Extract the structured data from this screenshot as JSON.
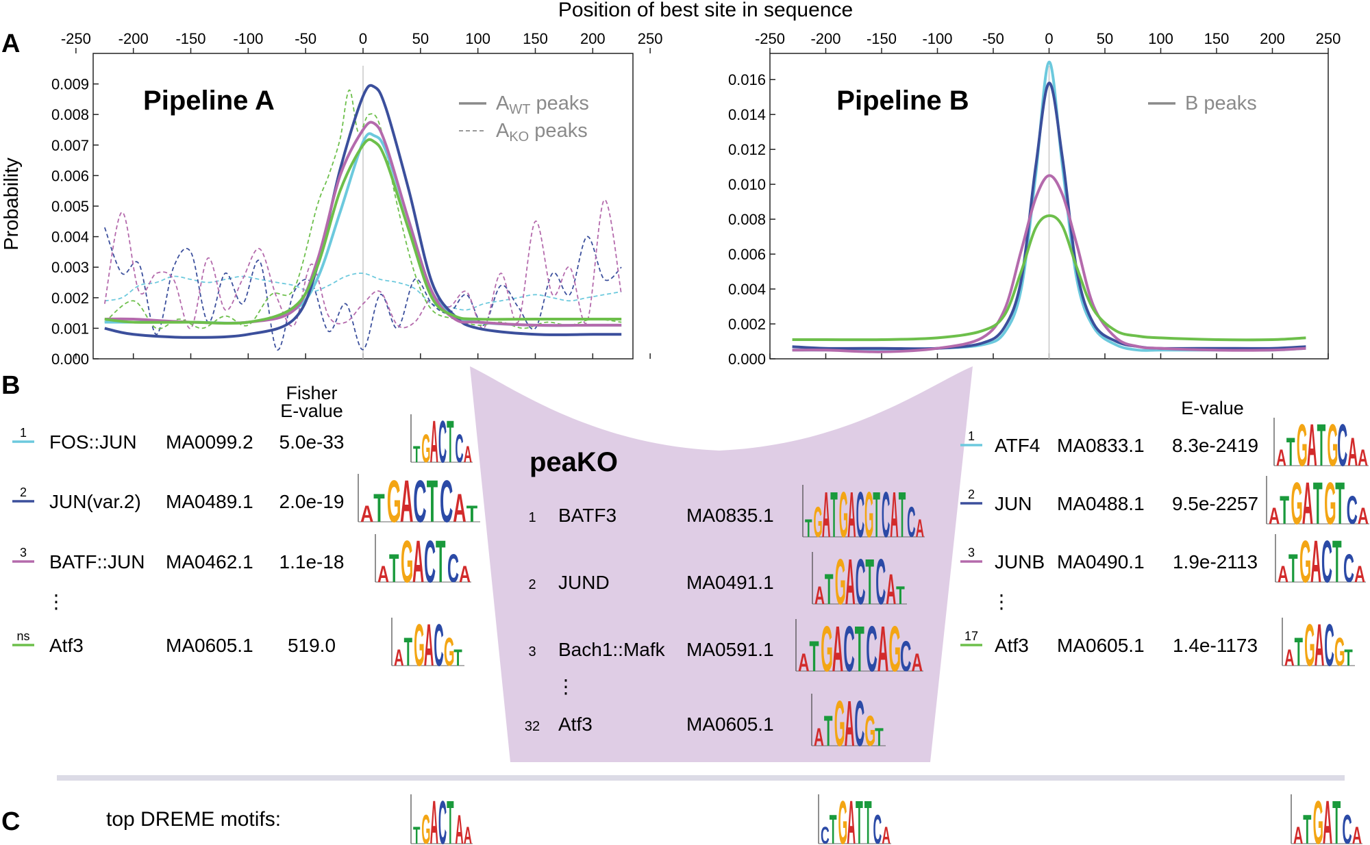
{
  "figure": {
    "panel_labels": [
      "A",
      "B",
      "C"
    ],
    "top_axis_title": "Position of best site in sequence",
    "colors": {
      "cyan": "#6cc9dd",
      "blue": "#3b4f9c",
      "magenta": "#b46aac",
      "green": "#6dbf4b",
      "legend_gray": "#8a8a8a",
      "funnel": "#d9c4e0"
    }
  },
  "chart_data": [
    {
      "type": "line",
      "title": "Pipeline A",
      "ylabel": "Probability",
      "xlim": [
        -235,
        235
      ],
      "ylim": [
        0,
        0.01
      ],
      "xticks": [
        -250,
        -200,
        -150,
        -100,
        -50,
        0,
        50,
        100,
        150,
        200,
        250
      ],
      "yticks": [
        0,
        0.001,
        0.002,
        0.003,
        0.004,
        0.005,
        0.006,
        0.007,
        0.008,
        0.009
      ],
      "ytick_labels": [
        "0.000",
        "0.001",
        "0.002",
        "0.003",
        "0.004",
        "0.005",
        "0.006",
        "0.007",
        "0.008",
        "0.009"
      ],
      "legend": [
        {
          "label": "A",
          "sub": "WT",
          "suffix": " peaks",
          "style": "solid"
        },
        {
          "label": "A",
          "sub": "KO",
          "suffix": " peaks",
          "style": "dashed"
        }
      ],
      "legend_position": "top-right",
      "center_line": 0,
      "series": [
        {
          "color": "cyan",
          "style": "solid",
          "x": [
            -225,
            -200,
            -150,
            -100,
            -60,
            -40,
            -20,
            0,
            10,
            20,
            40,
            60,
            80,
            100,
            150,
            200,
            225
          ],
          "y": [
            0.0012,
            0.0012,
            0.0012,
            0.0012,
            0.0016,
            0.0026,
            0.0048,
            0.0071,
            0.0073,
            0.0068,
            0.0045,
            0.0022,
            0.0014,
            0.0012,
            0.0011,
            0.0011,
            0.0011
          ]
        },
        {
          "color": "blue",
          "style": "solid",
          "x": [
            -225,
            -200,
            -150,
            -100,
            -60,
            -40,
            -20,
            0,
            10,
            20,
            40,
            60,
            80,
            100,
            150,
            200,
            225
          ],
          "y": [
            0.001,
            0.0008,
            0.0007,
            0.0008,
            0.0013,
            0.003,
            0.0062,
            0.0086,
            0.0089,
            0.0082,
            0.0055,
            0.0025,
            0.0014,
            0.001,
            0.0008,
            0.0008,
            0.0008
          ]
        },
        {
          "color": "magenta",
          "style": "solid",
          "x": [
            -225,
            -200,
            -150,
            -100,
            -60,
            -40,
            -20,
            0,
            10,
            20,
            40,
            60,
            80,
            100,
            150,
            200,
            225
          ],
          "y": [
            0.0013,
            0.0013,
            0.0012,
            0.0012,
            0.0016,
            0.0032,
            0.006,
            0.0075,
            0.0077,
            0.007,
            0.0045,
            0.0022,
            0.0013,
            0.0012,
            0.0011,
            0.0011,
            0.0011
          ]
        },
        {
          "color": "green",
          "style": "solid",
          "x": [
            -225,
            -200,
            -150,
            -100,
            -60,
            -40,
            -20,
            0,
            10,
            20,
            40,
            60,
            80,
            100,
            150,
            200,
            225
          ],
          "y": [
            0.0013,
            0.0012,
            0.0012,
            0.0012,
            0.0017,
            0.003,
            0.0055,
            0.007,
            0.0071,
            0.0065,
            0.0042,
            0.002,
            0.0014,
            0.0013,
            0.0013,
            0.0013,
            0.0013
          ]
        },
        {
          "color": "cyan",
          "style": "dashed",
          "x": [
            -225,
            -210,
            -195,
            -180,
            -165,
            -150,
            -135,
            -120,
            -105,
            -90,
            -75,
            -60,
            -45,
            -30,
            -15,
            0,
            15,
            30,
            45,
            60,
            75,
            90,
            105,
            120,
            135,
            150,
            165,
            180,
            195,
            210,
            225
          ],
          "y": [
            0.0019,
            0.002,
            0.0024,
            0.0025,
            0.0027,
            0.0026,
            0.0025,
            0.0026,
            0.0027,
            0.0026,
            0.0025,
            0.0024,
            0.0022,
            0.0024,
            0.0027,
            0.0028,
            0.0026,
            0.0025,
            0.0023,
            0.0018,
            0.0017,
            0.0016,
            0.0018,
            0.0019,
            0.002,
            0.0021,
            0.002,
            0.0019,
            0.002,
            0.0021,
            0.0022
          ]
        },
        {
          "color": "blue",
          "style": "dashed",
          "x": [
            -225,
            -210,
            -195,
            -180,
            -165,
            -150,
            -135,
            -120,
            -105,
            -90,
            -75,
            -60,
            -45,
            -30,
            -15,
            0,
            15,
            30,
            45,
            60,
            75,
            90,
            105,
            120,
            135,
            150,
            165,
            180,
            195,
            210,
            225
          ],
          "y": [
            0.0043,
            0.0028,
            0.0031,
            0.0008,
            0.003,
            0.0035,
            0.0012,
            0.0028,
            0.0018,
            0.0032,
            0.0003,
            0.0022,
            0.0025,
            0.0009,
            0.0018,
            0.0003,
            0.0021,
            0.001,
            0.0026,
            0.0018,
            0.0015,
            0.0021,
            0.0011,
            0.0024,
            0.0017,
            0.001,
            0.0028,
            0.0021,
            0.004,
            0.0026,
            0.003
          ]
        },
        {
          "color": "magenta",
          "style": "dashed",
          "x": [
            -225,
            -210,
            -195,
            -180,
            -165,
            -150,
            -135,
            -120,
            -105,
            -90,
            -75,
            -60,
            -45,
            -30,
            -15,
            0,
            15,
            30,
            45,
            60,
            75,
            90,
            105,
            120,
            135,
            150,
            165,
            180,
            195,
            210,
            225
          ],
          "y": [
            0.0018,
            0.0048,
            0.0022,
            0.0028,
            0.0026,
            0.001,
            0.0033,
            0.0016,
            0.0026,
            0.0036,
            0.002,
            0.0011,
            0.0031,
            0.0014,
            0.0012,
            0.0018,
            0.0022,
            0.0011,
            0.0012,
            0.002,
            0.0017,
            0.0022,
            0.001,
            0.0028,
            0.0012,
            0.0045,
            0.0021,
            0.003,
            0.0012,
            0.0052,
            0.0021
          ]
        },
        {
          "color": "green",
          "style": "dashed",
          "x": [
            -225,
            -200,
            -180,
            -160,
            -140,
            -120,
            -100,
            -80,
            -60,
            -40,
            -30,
            -20,
            -12,
            -4,
            5,
            15,
            30,
            45,
            60,
            80,
            100,
            120,
            140,
            160,
            180,
            200,
            225
          ],
          "y": [
            0.0012,
            0.0019,
            0.001,
            0.0013,
            0.001,
            0.0014,
            0.0011,
            0.0021,
            0.0023,
            0.005,
            0.006,
            0.0072,
            0.0088,
            0.0074,
            0.008,
            0.0076,
            0.005,
            0.0028,
            0.0016,
            0.0013,
            0.0011,
            0.0012,
            0.001,
            0.0012,
            0.0011,
            0.0013,
            0.0012
          ]
        }
      ]
    },
    {
      "type": "line",
      "title": "Pipeline B",
      "ylabel": "",
      "xlim": [
        -250,
        250
      ],
      "ylim": [
        0,
        0.0175
      ],
      "xticks": [
        -250,
        -200,
        -150,
        -100,
        -50,
        0,
        50,
        100,
        150,
        200,
        250
      ],
      "yticks": [
        0,
        0.002,
        0.004,
        0.006,
        0.008,
        0.01,
        0.012,
        0.014,
        0.016
      ],
      "ytick_labels": [
        "0.000",
        "0.002",
        "0.004",
        "0.006",
        "0.008",
        "0.010",
        "0.012",
        "0.014",
        "0.016"
      ],
      "legend": [
        {
          "label": "B",
          "sub": "",
          "suffix": " peaks",
          "style": "solid"
        }
      ],
      "legend_position": "top-right",
      "center_line": 0,
      "series": [
        {
          "color": "cyan",
          "style": "solid",
          "x": [
            -230,
            -200,
            -150,
            -100,
            -60,
            -40,
            -25,
            -12,
            0,
            12,
            25,
            40,
            60,
            80,
            100,
            150,
            200,
            230
          ],
          "y": [
            0.0005,
            0.0005,
            0.0005,
            0.0006,
            0.0008,
            0.0015,
            0.004,
            0.0105,
            0.017,
            0.011,
            0.0045,
            0.0018,
            0.0008,
            0.0005,
            0.0005,
            0.0005,
            0.0005,
            0.0006
          ]
        },
        {
          "color": "blue",
          "style": "solid",
          "x": [
            -230,
            -200,
            -150,
            -100,
            -60,
            -40,
            -25,
            -12,
            0,
            12,
            25,
            40,
            60,
            80,
            100,
            150,
            200,
            230
          ],
          "y": [
            0.0007,
            0.0006,
            0.0006,
            0.0006,
            0.0009,
            0.0018,
            0.0045,
            0.011,
            0.0158,
            0.0115,
            0.005,
            0.002,
            0.001,
            0.0007,
            0.0006,
            0.0006,
            0.0006,
            0.0007
          ]
        },
        {
          "color": "magenta",
          "style": "solid",
          "x": [
            -230,
            -200,
            -150,
            -100,
            -60,
            -40,
            -25,
            -12,
            0,
            12,
            25,
            40,
            60,
            80,
            100,
            150,
            200,
            230
          ],
          "y": [
            0.0005,
            0.0005,
            0.0004,
            0.0006,
            0.0012,
            0.0028,
            0.0062,
            0.0092,
            0.0105,
            0.0094,
            0.0065,
            0.003,
            0.0012,
            0.0007,
            0.0006,
            0.0005,
            0.0005,
            0.0006
          ]
        },
        {
          "color": "green",
          "style": "solid",
          "x": [
            -230,
            -200,
            -150,
            -100,
            -60,
            -40,
            -25,
            -12,
            0,
            12,
            25,
            40,
            60,
            80,
            100,
            150,
            200,
            230
          ],
          "y": [
            0.0011,
            0.0011,
            0.0011,
            0.0012,
            0.0016,
            0.0025,
            0.005,
            0.0075,
            0.0082,
            0.0076,
            0.0052,
            0.0028,
            0.0016,
            0.0013,
            0.0012,
            0.0011,
            0.0011,
            0.0012
          ]
        }
      ]
    }
  ],
  "panel_b": {
    "left": {
      "header_fisher": "Fisher",
      "header_evalue": "E-value",
      "rows": [
        {
          "rank": "1",
          "color": "cyan",
          "name": "FOS::JUN",
          "id": "MA0099.2",
          "evalue": "5.0e-33",
          "logo": "TGACTCA"
        },
        {
          "rank": "2",
          "color": "blue",
          "name": "JUN(var.2)",
          "id": "MA0489.1",
          "evalue": "2.0e-19",
          "logo": "ATGACTCAT"
        },
        {
          "rank": "3",
          "color": "magenta",
          "name": "BATF::JUN",
          "id": "MA0462.1",
          "evalue": "1.1e-18",
          "logo": "ATGACTCA"
        },
        {
          "rank": "ns",
          "color": "green",
          "name": "Atf3",
          "id": "MA0605.1",
          "evalue": "519.0",
          "logo": "ATGACGT"
        }
      ],
      "dots": "⋮"
    },
    "center": {
      "title": "peaKO",
      "rows": [
        {
          "rank": "1",
          "name": "BATF3",
          "id": "MA0835.1",
          "logo": "TGATGACGTCATCA"
        },
        {
          "rank": "2",
          "name": "JUND",
          "id": "MA0491.1",
          "logo": "ATGACTCAT"
        },
        {
          "rank": "3",
          "name": "Bach1::Mafk",
          "id": "MA0591.1",
          "logo": "ATGACTCAGCA"
        },
        {
          "rank": "32",
          "name": "Atf3",
          "id": "MA0605.1",
          "logo": "ATGACGT"
        }
      ],
      "dots": "⋮"
    },
    "right": {
      "header_evalue": "E-value",
      "rows": [
        {
          "rank": "1",
          "color": "cyan",
          "name": "ATF4",
          "id": "MA0833.1",
          "evalue": "8.3e-2419",
          "logo": "ATGATGCAA"
        },
        {
          "rank": "2",
          "color": "blue",
          "name": "JUN",
          "id": "MA0488.1",
          "evalue": "9.5e-2257",
          "logo": "ATGATGTCA"
        },
        {
          "rank": "3",
          "color": "magenta",
          "name": "JUNB",
          "id": "MA0490.1",
          "evalue": "1.9e-2113",
          "logo": "ATGACTCA"
        },
        {
          "rank": "17",
          "color": "green",
          "name": "Atf3",
          "id": "MA0605.1",
          "evalue": "1.4e-1173",
          "logo": "ATGACGT"
        }
      ],
      "dots": "⋮"
    }
  },
  "panel_c": {
    "label": "top DREME motifs:",
    "logos": [
      "TGACTAA",
      "CTGATTCA",
      "ATGATCA"
    ]
  }
}
